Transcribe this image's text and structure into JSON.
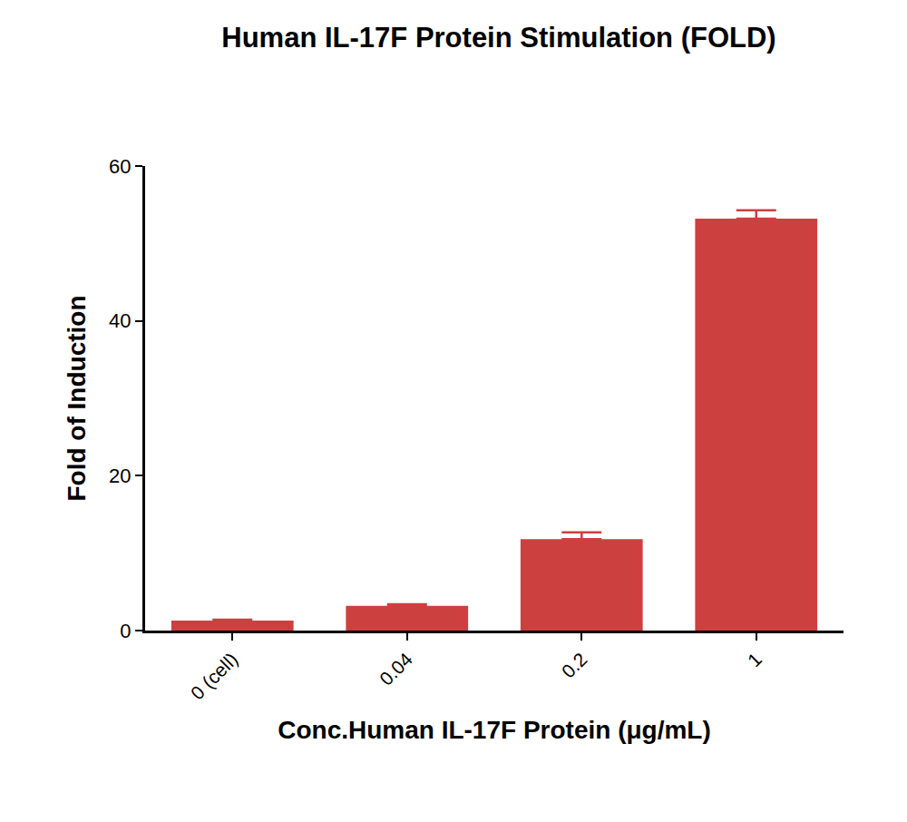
{
  "chart_data": {
    "type": "bar",
    "title": "Human IL-17F Protein Stimulation (FOLD)",
    "x_label": "Conc.Human IL-17F Protein (μg/mL)",
    "y_label": "Fold of Induction",
    "categories": [
      "0 (cell)",
      "0.04",
      "0.2",
      "1"
    ],
    "values": [
      1.3,
      3.2,
      11.8,
      53.2
    ],
    "errors": [
      0.1,
      0.2,
      0.9,
      1.1
    ],
    "color": "#cd4040",
    "ylim": [
      0,
      60
    ],
    "yticks": [
      0,
      20,
      40,
      60
    ],
    "grid": false
  }
}
